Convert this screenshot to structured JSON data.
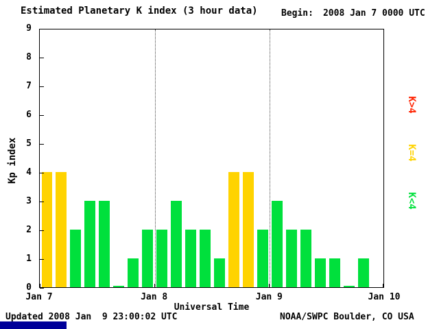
{
  "header": {
    "title": "Estimated Planetary K index (3 hour data)",
    "begin_label": "Begin:",
    "begin_value": "2008 Jan 7 0000 UTC"
  },
  "footer": {
    "updated": "Updated 2008 Jan  9 23:00:02 UTC",
    "credit": "NOAA/SWPC Boulder, CO USA"
  },
  "legend": {
    "position": "right",
    "items": [
      {
        "label": "K>4",
        "color": "#ff2200"
      },
      {
        "label": "K=4",
        "color": "#ffd300"
      },
      {
        "label": "K<4",
        "color": "#00e03c"
      }
    ]
  },
  "chart_data": {
    "type": "bar",
    "title": "Estimated Planetary K index (3 hour data)",
    "xlabel": "Universal Time",
    "ylabel": "Kp index",
    "ylim": [
      0,
      9
    ],
    "y_ticks": [
      0,
      1,
      2,
      3,
      4,
      5,
      6,
      7,
      8,
      9
    ],
    "x_ticks": [
      "Jan 7",
      "Jan 8",
      "Jan 9",
      "Jan 10"
    ],
    "hours_per_bar": 3,
    "slots_total": 24,
    "grid": "dotted vertical lines at day boundaries",
    "legend_position": "right",
    "colors": {
      "below4": "#00e03c",
      "equal4": "#ffd300",
      "above4": "#ff2200"
    },
    "values": [
      4,
      4,
      2,
      3,
      3,
      0,
      1,
      2,
      2,
      3,
      2,
      2,
      1,
      4,
      4,
      2,
      3,
      2,
      2,
      1,
      1,
      0,
      1
    ]
  }
}
